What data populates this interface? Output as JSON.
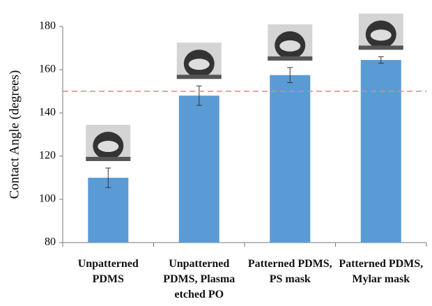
{
  "chart_data": {
    "type": "bar",
    "y_label": "Contact Angle (degrees)",
    "categories": [
      "Unpatterned PDMS",
      "Unpatterned PDMS, Plasma etched PO",
      "Patterned PDMS, PS mask",
      "Patterned PDMS, Mylar mask"
    ],
    "values": [
      110,
      148,
      157.5,
      164.5
    ],
    "errors": [
      4.5,
      4.5,
      3.5,
      1.5
    ],
    "color": "#5b9bd5",
    "ylim": [
      80,
      180
    ],
    "yticks": [
      80,
      100,
      120,
      140,
      160,
      180
    ],
    "reference_line": 150,
    "reference_color": "#e8847f",
    "grid": false
  }
}
